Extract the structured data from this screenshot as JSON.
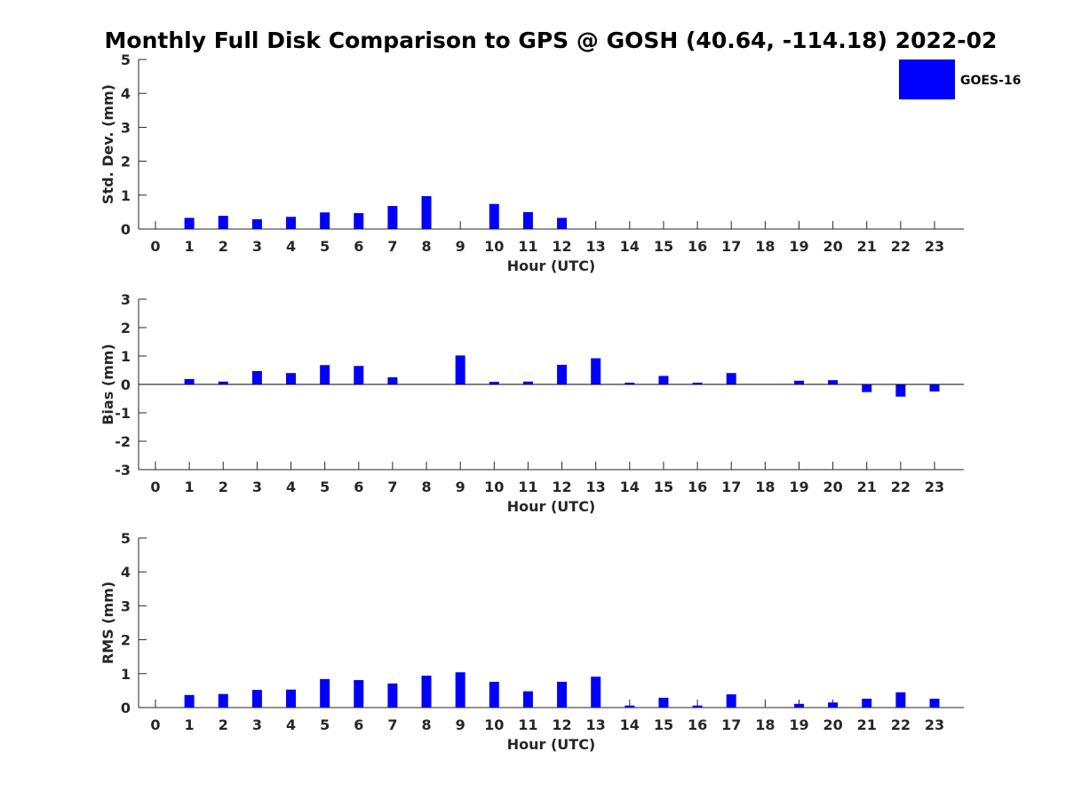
{
  "title": "Monthly Full Disk Comparison to GPS @ GOSH (40.64, -114.18) 2022-02",
  "legend": {
    "label": "GOES-16",
    "color": "#0000ff",
    "position": "top-right"
  },
  "chart_data": [
    {
      "type": "bar",
      "id": "stddev",
      "xlabel": "Hour (UTC)",
      "ylabel": "Std. Dev. (mm)",
      "ylim": [
        0,
        5
      ],
      "yticks": [
        0,
        1,
        2,
        3,
        4,
        5
      ],
      "categories": [
        0,
        1,
        2,
        3,
        4,
        5,
        6,
        7,
        8,
        9,
        10,
        11,
        12,
        13,
        14,
        15,
        16,
        17,
        18,
        19,
        20,
        21,
        22,
        23
      ],
      "series": [
        {
          "name": "GOES-16",
          "values": [
            0,
            0.33,
            0.39,
            0.29,
            0.36,
            0.49,
            0.47,
            0.68,
            0.97,
            0,
            0.74,
            0.5,
            0.33,
            0,
            0,
            0,
            0,
            0,
            0,
            0,
            0,
            0,
            0,
            0
          ]
        }
      ]
    },
    {
      "type": "bar",
      "id": "bias",
      "xlabel": "Hour (UTC)",
      "ylabel": "Bias (mm)",
      "ylim": [
        -3,
        3
      ],
      "yticks": [
        -3,
        -2,
        -1,
        0,
        1,
        2,
        3
      ],
      "categories": [
        0,
        1,
        2,
        3,
        4,
        5,
        6,
        7,
        8,
        9,
        10,
        11,
        12,
        13,
        14,
        15,
        16,
        17,
        18,
        19,
        20,
        21,
        22,
        23
      ],
      "series": [
        {
          "name": "GOES-16",
          "values": [
            0,
            0.19,
            0.1,
            0.47,
            0.4,
            0.68,
            0.65,
            0.25,
            0,
            1.02,
            0.09,
            0.1,
            0.69,
            0.92,
            0.06,
            0.3,
            0.06,
            0.4,
            0,
            0.13,
            0.15,
            -0.27,
            -0.43,
            -0.25
          ]
        }
      ]
    },
    {
      "type": "bar",
      "id": "rms",
      "xlabel": "Hour (UTC)",
      "ylabel": "RMS (mm)",
      "ylim": [
        0,
        5
      ],
      "yticks": [
        0,
        1,
        2,
        3,
        4,
        5
      ],
      "categories": [
        0,
        1,
        2,
        3,
        4,
        5,
        6,
        7,
        8,
        9,
        10,
        11,
        12,
        13,
        14,
        15,
        16,
        17,
        18,
        19,
        20,
        21,
        22,
        23
      ],
      "series": [
        {
          "name": "GOES-16",
          "values": [
            0,
            0.37,
            0.4,
            0.52,
            0.53,
            0.84,
            0.81,
            0.71,
            0.94,
            1.04,
            0.76,
            0.48,
            0.76,
            0.91,
            0.06,
            0.29,
            0.06,
            0.39,
            0,
            0.11,
            0.15,
            0.26,
            0.45,
            0.26
          ]
        }
      ]
    }
  ]
}
